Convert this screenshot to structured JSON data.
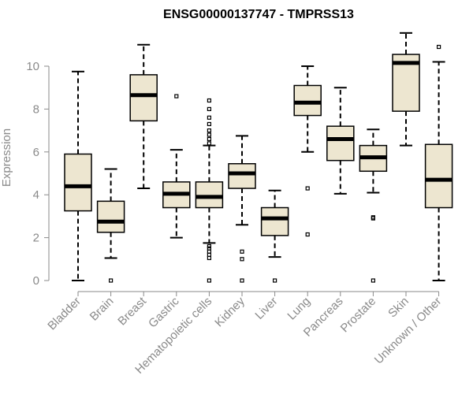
{
  "chart_data": {
    "type": "boxplot",
    "title": "ENSG00000137747 - TMPRSS13",
    "ylabel": "Expression",
    "ylim": [
      0,
      11.5
    ],
    "yticks": [
      0,
      2,
      4,
      6,
      8,
      10
    ],
    "box_fill": "#ede6d0",
    "box_stroke": "#000000",
    "categories": [
      "Bladder",
      "Brain",
      "Breast",
      "Gastric",
      "Hematopoietic cells",
      "Kidney",
      "Liver",
      "Lung",
      "Pancreas",
      "Prostate",
      "Skin",
      "Unknown / Other"
    ],
    "boxes": [
      {
        "min": 0.0,
        "q1": 3.25,
        "median": 4.4,
        "q3": 5.9,
        "max": 9.75,
        "outliers": []
      },
      {
        "min": 1.05,
        "q1": 2.25,
        "median": 2.75,
        "q3": 3.7,
        "max": 5.2,
        "outliers": [
          0.0
        ]
      },
      {
        "min": 4.3,
        "q1": 7.45,
        "median": 8.65,
        "q3": 9.6,
        "max": 11.0,
        "outliers": []
      },
      {
        "min": 2.0,
        "q1": 3.4,
        "median": 4.05,
        "q3": 4.6,
        "max": 6.1,
        "outliers": [
          8.6
        ]
      },
      {
        "min": 1.75,
        "q1": 3.4,
        "median": 3.9,
        "q3": 4.6,
        "max": 6.3,
        "outliers": [
          0.0,
          1.05,
          1.2,
          1.35,
          1.5,
          1.6,
          6.4,
          6.6,
          6.8,
          7.0,
          7.3,
          7.6,
          8.0,
          8.4
        ]
      },
      {
        "min": 2.6,
        "q1": 4.3,
        "median": 5.0,
        "q3": 5.45,
        "max": 6.75,
        "outliers": [
          0.0,
          1.0,
          1.35
        ]
      },
      {
        "min": 1.1,
        "q1": 2.1,
        "median": 2.9,
        "q3": 3.4,
        "max": 4.2,
        "outliers": [
          0.0
        ]
      },
      {
        "min": 6.0,
        "q1": 7.7,
        "median": 8.3,
        "q3": 9.1,
        "max": 10.0,
        "outliers": [
          2.15,
          4.3
        ]
      },
      {
        "min": 4.05,
        "q1": 5.6,
        "median": 6.6,
        "q3": 7.2,
        "max": 9.0,
        "outliers": []
      },
      {
        "min": 4.1,
        "q1": 5.1,
        "median": 5.75,
        "q3": 6.3,
        "max": 7.05,
        "outliers": [
          0.0,
          2.9,
          2.95
        ]
      },
      {
        "min": 6.3,
        "q1": 7.9,
        "median": 10.15,
        "q3": 10.55,
        "max": 11.55,
        "outliers": []
      },
      {
        "min": 0.0,
        "q1": 3.4,
        "median": 4.7,
        "q3": 6.35,
        "max": 10.2,
        "outliers": [
          10.9
        ]
      }
    ]
  }
}
